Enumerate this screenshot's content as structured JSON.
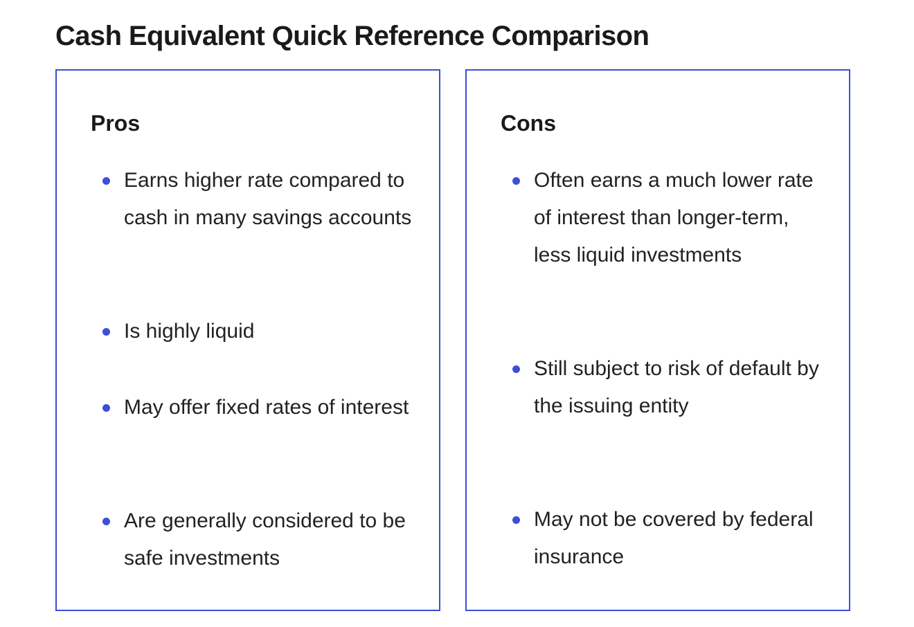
{
  "title": "Cash Equivalent Quick Reference Comparison",
  "pros": {
    "heading": "Pros",
    "items": [
      "Earns higher rate compared to cash in many savings accounts",
      "Is highly liquid",
      "May offer fixed rates of interest",
      "Are generally considered to be safe investments"
    ]
  },
  "cons": {
    "heading": "Cons",
    "items": [
      "Often earns a much lower rate of interest than longer-term, less liquid investments",
      "Still subject to risk of default by the issuing entity",
      "May not be covered by federal insurance"
    ]
  },
  "colors": {
    "accent": "#3d4fd6",
    "text": "#1a1a1a"
  }
}
